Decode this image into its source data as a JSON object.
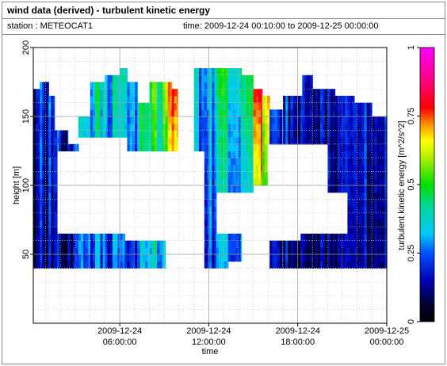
{
  "header": {
    "title": "wind data (derived) - turbulent kinetic energy",
    "station": "station : METEOCAT1",
    "time_range": "time: 2009-12-24 00:10:00 to 2009-12-25 00:00:00"
  },
  "chart_data": {
    "type": "heatmap",
    "title": "wind data (derived) - turbulent kinetic energy",
    "xlabel": "time",
    "ylabel": "height [m]",
    "x_tick_labels": [
      [
        "2009-12-24",
        "06:00:00"
      ],
      [
        "2009-12-24",
        "12:00:00"
      ],
      [
        "2009-12-24",
        "18:00:00"
      ],
      [
        "2009-12-25",
        "00:00:00"
      ]
    ],
    "x_ticks_hours": [
      6,
      12,
      18,
      24
    ],
    "xlim_hours": [
      0.17,
      24
    ],
    "ylim": [
      0,
      200
    ],
    "y_ticks": [
      50,
      100,
      150,
      200
    ],
    "grid": true,
    "colorbar": {
      "label": "turbulent kinetic energy [m^2/s^2]",
      "min": 0,
      "max": 1,
      "ticks": [
        0,
        0.25,
        0.5,
        0.75,
        1
      ],
      "tick_labels": [
        "0",
        "0.25",
        "0.5",
        "0.75",
        "1"
      ]
    },
    "height_levels": [
      40,
      45,
      50,
      55,
      60,
      65,
      70,
      75,
      80,
      85,
      90,
      95,
      100,
      105,
      110,
      115,
      120,
      125,
      130,
      135,
      140,
      145,
      150,
      155,
      160,
      165,
      170,
      175
    ],
    "segments": [
      {
        "t_start": 0.17,
        "t_end": 0.6,
        "h_min": 40,
        "h_max": 170,
        "tke": 0.15
      },
      {
        "t_start": 0.6,
        "t_end": 1.2,
        "h_min": 40,
        "h_max": 175,
        "tke": 0.18
      },
      {
        "t_start": 1.2,
        "t_end": 1.6,
        "h_min": 40,
        "h_max": 165,
        "tke": 0.22
      },
      {
        "t_start": 1.6,
        "t_end": 2.5,
        "h_min": 40,
        "h_max": 140,
        "tke": 0.16
      },
      {
        "t_start": 2.5,
        "t_end": 3.2,
        "h_min": 40,
        "h_max": 130,
        "tke": 0.2
      },
      {
        "t_start": 3.2,
        "t_end": 4.0,
        "h_min": 40,
        "h_max": 150,
        "tke": 0.3
      },
      {
        "t_start": 4.0,
        "t_end": 5.0,
        "h_min": 40,
        "h_max": 175,
        "tke": 0.32
      },
      {
        "t_start": 5.0,
        "t_end": 6.0,
        "h_min": 40,
        "h_max": 180,
        "tke": 0.28
      },
      {
        "t_start": 6.0,
        "t_end": 6.5,
        "h_min": 40,
        "h_max": 185,
        "tke": 0.35
      },
      {
        "t_start": 6.5,
        "t_end": 7.2,
        "h_min": 40,
        "h_max": 175,
        "tke": 0.3
      },
      {
        "t_start": 7.2,
        "t_end": 8.0,
        "h_min": 40,
        "h_max": 160,
        "tke": 0.38
      },
      {
        "t_start": 8.0,
        "t_end": 8.9,
        "h_min": 40,
        "h_max": 175,
        "tke": 0.42
      },
      {
        "t_start": 8.9,
        "t_end": 9.5,
        "h_min": 40,
        "h_max": 175,
        "tke": 0.6
      },
      {
        "t_start": 9.5,
        "t_end": 9.9,
        "h_min": 115,
        "h_max": 168,
        "tke": 0.7
      },
      {
        "t_start": 11.0,
        "t_end": 11.7,
        "h_min": 40,
        "h_max": 185,
        "tke": 0.25
      },
      {
        "t_start": 11.7,
        "t_end": 12.5,
        "h_min": 40,
        "h_max": 185,
        "tke": 0.3
      },
      {
        "t_start": 12.5,
        "t_end": 13.3,
        "h_min": 40,
        "h_max": 185,
        "tke": 0.38
      },
      {
        "t_start": 13.3,
        "t_end": 14.2,
        "h_min": 45,
        "h_max": 185,
        "tke": 0.35
      },
      {
        "t_start": 14.2,
        "t_end": 15.0,
        "h_min": 95,
        "h_max": 180,
        "tke": 0.45
      },
      {
        "t_start": 15.0,
        "t_end": 15.6,
        "h_min": 100,
        "h_max": 170,
        "tke": 0.75
      },
      {
        "t_start": 15.6,
        "t_end": 16.1,
        "h_min": 100,
        "h_max": 165,
        "tke": 0.55
      },
      {
        "t_start": 16.1,
        "t_end": 17.0,
        "h_min": 40,
        "h_max": 155,
        "tke": 0.2
      },
      {
        "t_start": 17.0,
        "t_end": 18.3,
        "h_min": 40,
        "h_max": 165,
        "tke": 0.18
      },
      {
        "t_start": 18.3,
        "t_end": 19.0,
        "h_min": 40,
        "h_max": 180,
        "tke": 0.15
      },
      {
        "t_start": 19.0,
        "t_end": 20.5,
        "h_min": 40,
        "h_max": 170,
        "tke": 0.12
      },
      {
        "t_start": 20.5,
        "t_end": 21.8,
        "h_min": 40,
        "h_max": 165,
        "tke": 0.16
      },
      {
        "t_start": 21.8,
        "t_end": 23.0,
        "h_min": 40,
        "h_max": 160,
        "tke": 0.14
      },
      {
        "t_start": 23.0,
        "t_end": 24.0,
        "h_min": 40,
        "h_max": 150,
        "tke": 0.13
      }
    ],
    "gaps": [
      {
        "t_start": 1.8,
        "t_end": 11.6,
        "h_min": 65,
        "h_max": 125
      },
      {
        "t_start": 3.2,
        "t_end": 6.5,
        "h_min": 125,
        "h_max": 135
      },
      {
        "t_start": 6.3,
        "t_end": 9.0,
        "h_min": 60,
        "h_max": 70
      },
      {
        "t_start": 9.0,
        "t_end": 11.7,
        "h_min": 40,
        "h_max": 125
      },
      {
        "t_start": 12.5,
        "t_end": 14.3,
        "h_min": 65,
        "h_max": 95
      },
      {
        "t_start": 13.0,
        "t_end": 21.4,
        "h_min": 65,
        "h_max": 95
      },
      {
        "t_start": 14.3,
        "t_end": 16.0,
        "h_min": 40,
        "h_max": 60
      },
      {
        "t_start": 16.0,
        "t_end": 20.0,
        "h_min": 95,
        "h_max": 130
      },
      {
        "t_start": 16.0,
        "t_end": 18.2,
        "h_min": 60,
        "h_max": 70
      }
    ]
  }
}
